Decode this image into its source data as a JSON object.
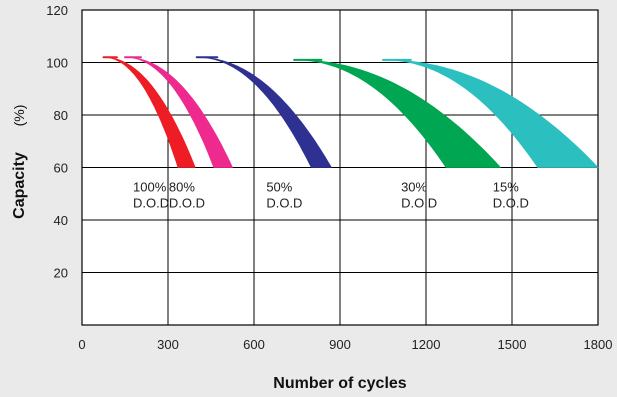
{
  "chart_data": {
    "type": "area",
    "title": "",
    "xlabel": "Number of cycles",
    "ylabel": "Capacity",
    "ylabel_unit": "(%)",
    "xlim": [
      0,
      1800
    ],
    "ylim": [
      0,
      120
    ],
    "x_ticks": [
      0,
      300,
      600,
      900,
      1200,
      1500,
      1800
    ],
    "y_ticks": [
      20,
      40,
      60,
      80,
      100,
      120
    ],
    "grid": true,
    "series": [
      {
        "name_line1": "100%",
        "name_line2": "D.O.D",
        "color": "#ee1c25",
        "band_start_x": 75,
        "band_start_y": 102,
        "lower_end_x": 335,
        "upper_end_x": 395,
        "end_y": 60
      },
      {
        "name_line1": "80%",
        "name_line2": "D.O.D",
        "color": "#ee2a8f",
        "band_start_x": 150,
        "band_start_y": 102,
        "lower_end_x": 460,
        "upper_end_x": 525,
        "end_y": 60
      },
      {
        "name_line1": "50%",
        "name_line2": "D.O.D",
        "color": "#2e3192",
        "band_start_x": 400,
        "band_start_y": 102,
        "lower_end_x": 800,
        "upper_end_x": 870,
        "end_y": 60
      },
      {
        "name_line1": "30%",
        "name_line2": "D.O.D",
        "color": "#00a651",
        "band_start_x": 740,
        "band_start_y": 101,
        "lower_end_x": 1270,
        "upper_end_x": 1460,
        "end_y": 60
      },
      {
        "name_line1": "15%",
        "name_line2": "D.O.D",
        "color": "#2cbfbf",
        "band_start_x": 1050,
        "band_start_y": 101,
        "lower_end_x": 1590,
        "upper_end_x": 1800,
        "end_y": 60
      }
    ]
  }
}
